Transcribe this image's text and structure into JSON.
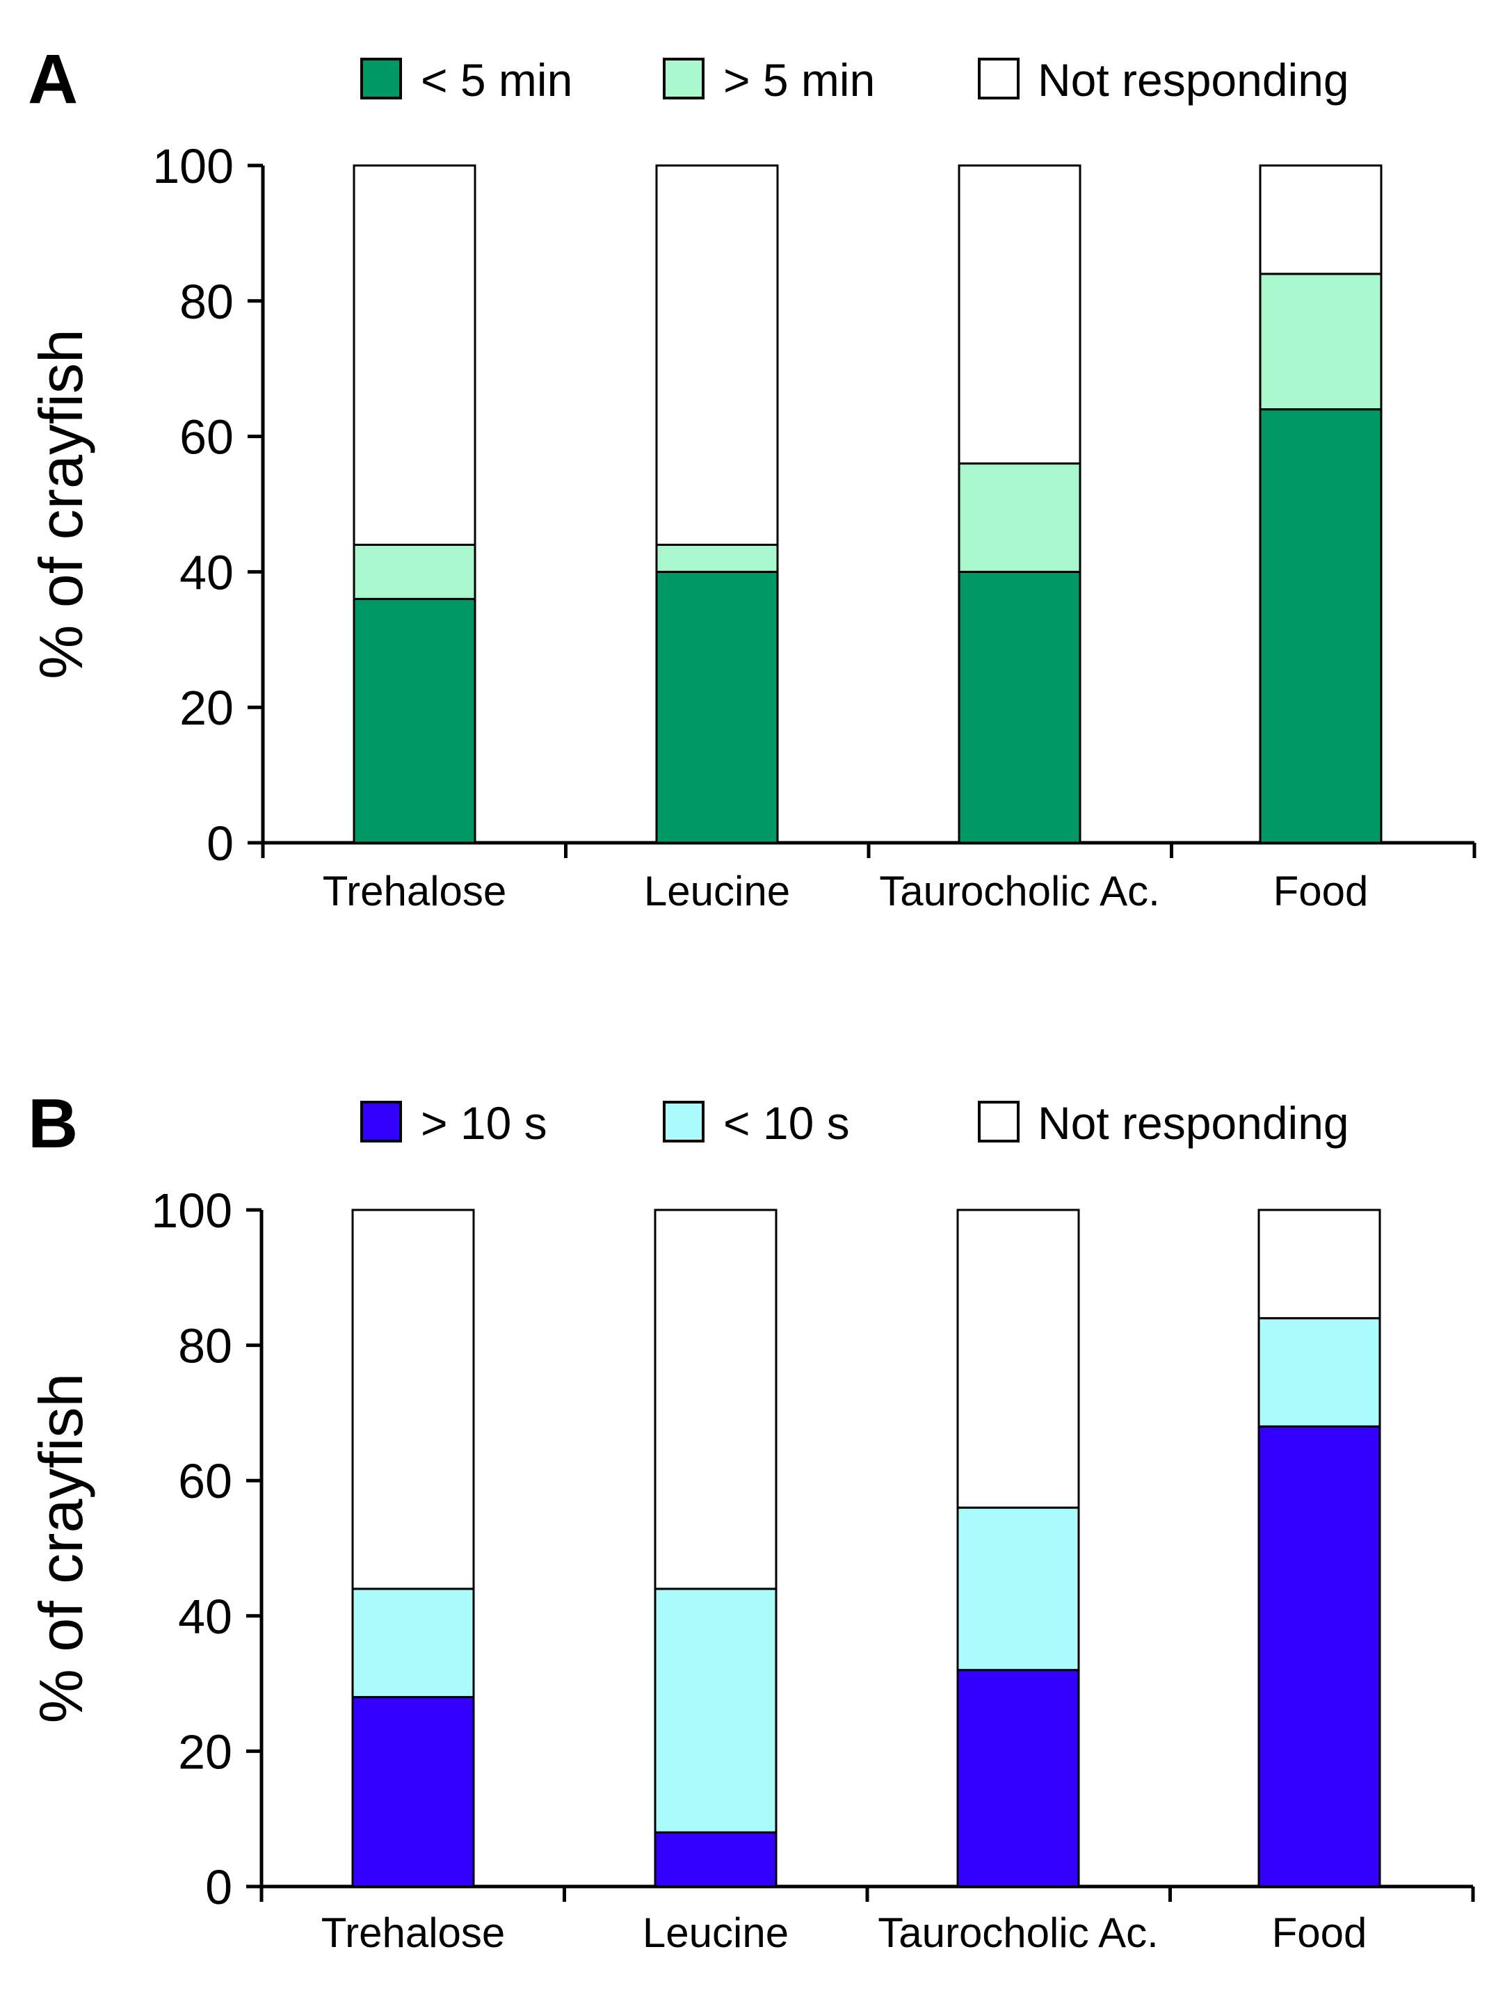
{
  "chart_data": [
    {
      "type": "bar",
      "stacked": true,
      "panel_label": "A",
      "title": "",
      "xlabel": "",
      "ylabel": "% of crayfish",
      "ylim": [
        0,
        100
      ],
      "yticks": [
        "0",
        "20",
        "40",
        "60",
        "80",
        "100"
      ],
      "categories": [
        "Trehalose",
        "Leucine",
        "Taurocholic Ac.",
        "Food"
      ],
      "legend_position": "top",
      "series": [
        {
          "name": "< 5 min",
          "color": "#009966",
          "values": [
            36,
            40,
            40,
            64
          ]
        },
        {
          "name": "> 5 min",
          "color": "#a8f7cd",
          "values": [
            8,
            4,
            16,
            20
          ]
        },
        {
          "name": "Not responding",
          "color": "#ffffff",
          "values": [
            56,
            56,
            44,
            16
          ]
        }
      ]
    },
    {
      "type": "bar",
      "stacked": true,
      "panel_label": "B",
      "title": "",
      "xlabel": "",
      "ylabel": "% of crayfish",
      "ylim": [
        0,
        100
      ],
      "yticks": [
        "0",
        "20",
        "40",
        "60",
        "80",
        "100"
      ],
      "categories": [
        "Trehalose",
        "Leucine",
        "Taurocholic Ac.",
        "Food"
      ],
      "legend_position": "top",
      "series": [
        {
          "name": "> 10 s",
          "color": "#3300ff",
          "values": [
            28,
            8,
            32,
            68
          ]
        },
        {
          "name": "< 10 s",
          "color": "#aafbfb",
          "values": [
            16,
            36,
            24,
            16
          ]
        },
        {
          "name": "Not responding",
          "color": "#ffffff",
          "values": [
            56,
            56,
            44,
            16
          ]
        }
      ]
    }
  ]
}
